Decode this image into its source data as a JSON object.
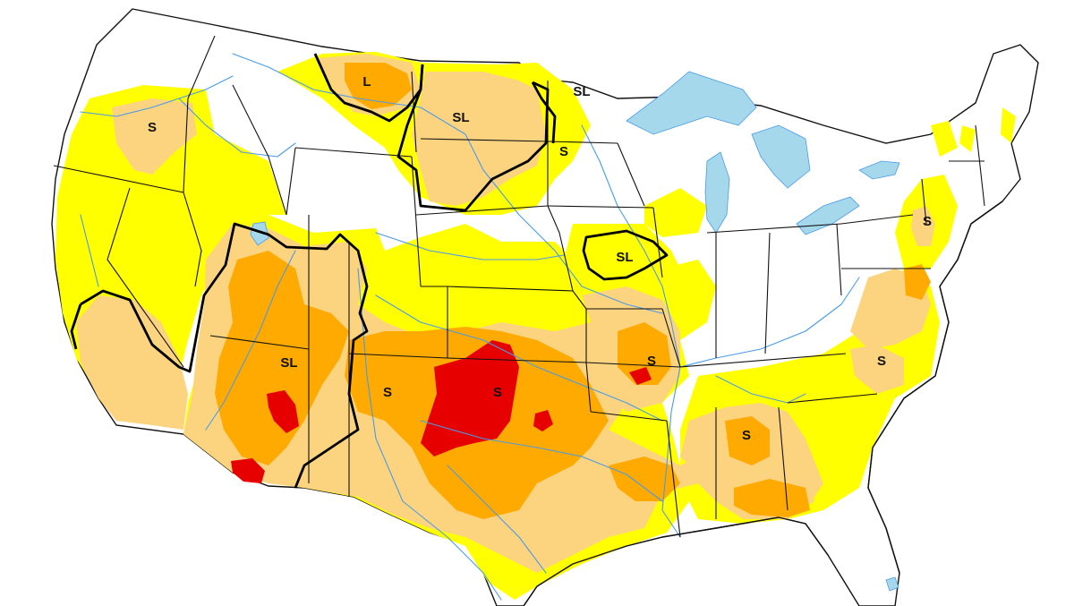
{
  "map": {
    "colors": {
      "background": "#ffffff",
      "abnormally_dry": "#ffff00",
      "moderate_drought": "#fcd37f",
      "severe_drought": "#ffaa00",
      "extreme_drought": "#e60000",
      "exceptional_drought": "#730000",
      "water": "#a6d8ec",
      "rivers": "#4a9be8",
      "boundaries": "#111111",
      "impact_lines": "#000000"
    },
    "impact_labels": [
      {
        "id": "mt-north",
        "text": "L"
      },
      {
        "id": "nd-west",
        "text": "SL"
      },
      {
        "id": "mn-north",
        "text": "SL"
      },
      {
        "id": "mn-mid",
        "text": "S"
      },
      {
        "id": "or-east",
        "text": "S"
      },
      {
        "id": "ia-north",
        "text": "SL"
      },
      {
        "id": "southwest",
        "text": "SL"
      },
      {
        "id": "nm-east",
        "text": "S"
      },
      {
        "id": "ok-west",
        "text": "S"
      },
      {
        "id": "mo-south",
        "text": "S"
      },
      {
        "id": "pa-east",
        "text": "S"
      },
      {
        "id": "al-north",
        "text": "S"
      },
      {
        "id": "va-south",
        "text": "S"
      }
    ]
  }
}
